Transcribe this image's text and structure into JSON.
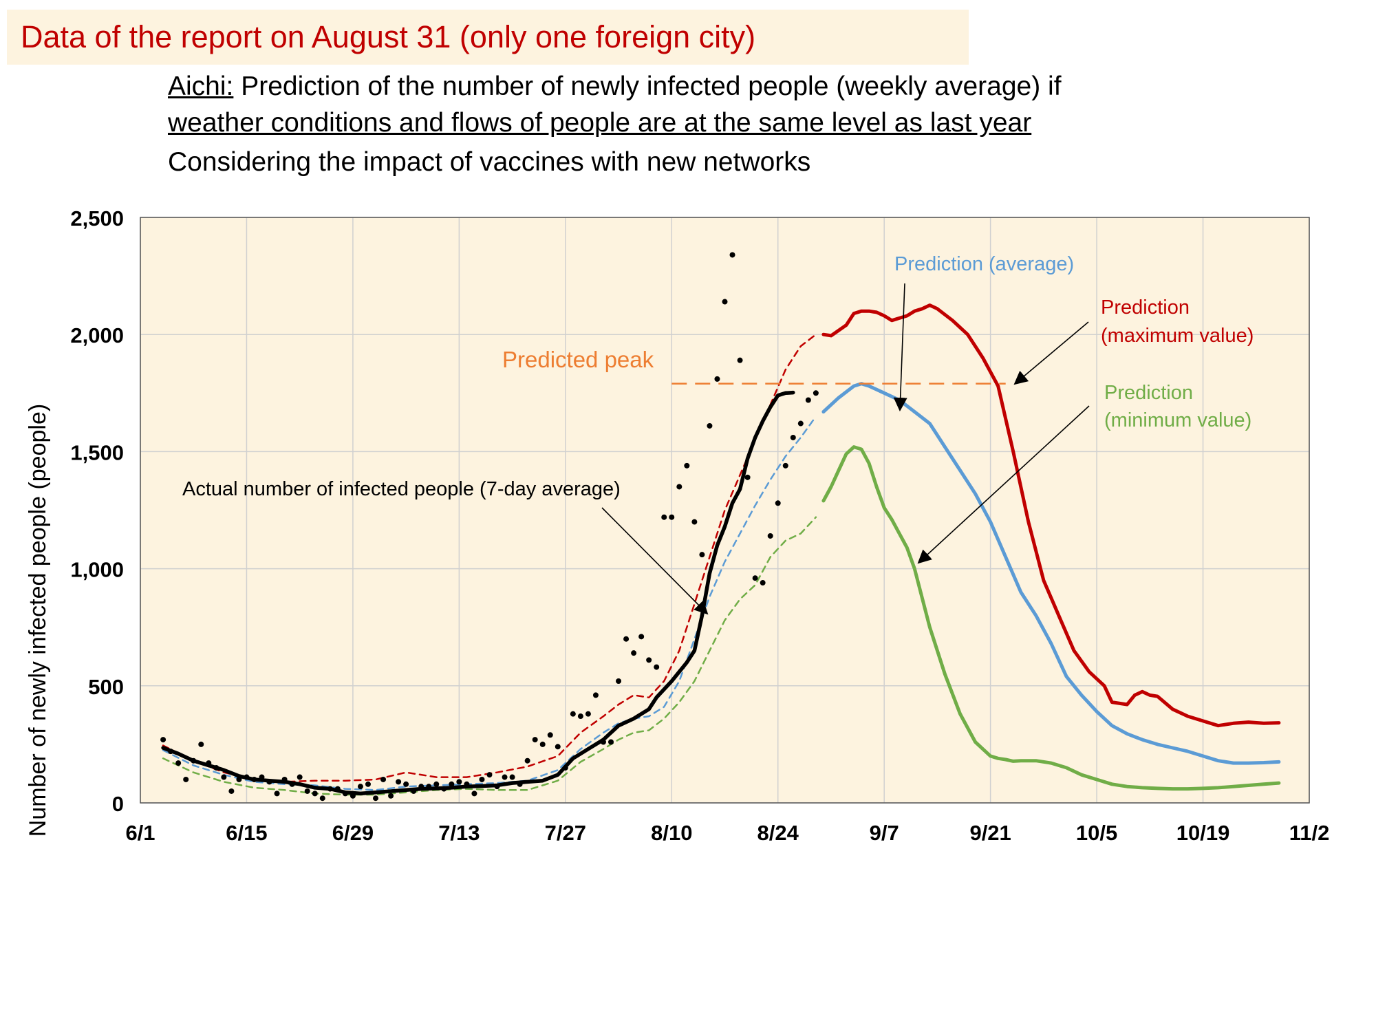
{
  "header": {
    "report_title": "Data of the report on August 31 (only one foreign city)",
    "subtitle_line1_prefix": "Aichi:",
    "subtitle_line1_rest": " Prediction of the number of newly infected people (weekly average) if",
    "subtitle_line2": "weather conditions and flows of people are at the same level as last year",
    "subtitle_line3": "Considering the impact of vaccines with new networks"
  },
  "colors": {
    "plot_background": "#fdf3df",
    "title_red": "#c00000",
    "actual": "#000000",
    "max": "#c00000",
    "avg": "#5b9bd5",
    "min": "#70ad47",
    "peak": "#ed7d31"
  },
  "chart_data": {
    "type": "line",
    "ylabel": "Number of newly infected people (people)",
    "xlabel": "",
    "ylim": [
      0,
      2500
    ],
    "yticks": [
      0,
      500,
      1000,
      1500,
      2000,
      2500
    ],
    "ytick_labels": [
      "0",
      "500",
      "1,000",
      "1,500",
      "2,000",
      "2,500"
    ],
    "xticks": [
      0,
      14,
      28,
      42,
      56,
      70,
      84,
      98,
      112,
      126,
      140,
      154
    ],
    "xtick_labels": [
      "6/1",
      "6/15",
      "6/29",
      "7/13",
      "7/27",
      "8/10",
      "8/24",
      "9/7",
      "9/21",
      "10/5",
      "10/19",
      "11/2"
    ],
    "x_unit": "days since 6/1",
    "grid": true,
    "predicted_peak": {
      "label": "Predicted peak",
      "value": 1790,
      "x_start": 70,
      "x_end": 114
    },
    "annotations": {
      "actual": "Actual number of infected people (7-day average)",
      "avg": "Prediction (average)",
      "max_line1": "Prediction",
      "max_line2": "(maximum value)",
      "min_line1": "Prediction",
      "min_line2": "(minimum value)"
    },
    "series": [
      {
        "name": "Actual number of infected people (7-day average)",
        "style": "solid-thick",
        "x": [
          3,
          5,
          7,
          9,
          11,
          13,
          15,
          17,
          19,
          21,
          23,
          25,
          27,
          29,
          31,
          33,
          35,
          37,
          39,
          41,
          43,
          45,
          47,
          49,
          51,
          53,
          55,
          57,
          59,
          61,
          63,
          65,
          67,
          68,
          70,
          72,
          73,
          74,
          75,
          76,
          77,
          78,
          79,
          80,
          81,
          82,
          83,
          84,
          85,
          86
        ],
        "values": [
          235,
          210,
          180,
          160,
          140,
          115,
          100,
          95,
          90,
          80,
          65,
          60,
          45,
          40,
          45,
          50,
          55,
          60,
          62,
          65,
          70,
          72,
          75,
          85,
          90,
          95,
          120,
          190,
          230,
          270,
          330,
          360,
          400,
          450,
          520,
          600,
          650,
          800,
          980,
          1100,
          1180,
          1280,
          1340,
          1470,
          1560,
          1630,
          1690,
          1740,
          1750,
          1752
        ]
      },
      {
        "name": "Past prediction (maximum value)",
        "style": "dashed",
        "x": [
          3,
          7,
          11,
          15,
          19,
          23,
          27,
          31,
          35,
          39,
          43,
          47,
          51,
          55,
          58,
          61,
          63,
          65,
          67,
          69,
          71,
          73,
          75,
          77,
          79,
          81,
          83,
          85,
          87,
          89
        ],
        "values": [
          245,
          180,
          130,
          100,
          90,
          95,
          95,
          100,
          130,
          110,
          110,
          130,
          155,
          200,
          300,
          370,
          420,
          460,
          450,
          520,
          650,
          850,
          1050,
          1250,
          1400,
          1550,
          1700,
          1850,
          1950,
          2000
        ]
      },
      {
        "name": "Past prediction (average)",
        "style": "dashed",
        "x": [
          3,
          7,
          11,
          15,
          19,
          23,
          27,
          31,
          35,
          39,
          43,
          47,
          51,
          55,
          58,
          61,
          63,
          65,
          67,
          69,
          71,
          73,
          75,
          77,
          79,
          81,
          83,
          85,
          87,
          89
        ],
        "values": [
          225,
          160,
          120,
          90,
          80,
          75,
          60,
          55,
          70,
          75,
          80,
          85,
          95,
          140,
          230,
          300,
          340,
          360,
          370,
          410,
          520,
          700,
          880,
          1030,
          1150,
          1270,
          1380,
          1480,
          1560,
          1650
        ]
      },
      {
        "name": "Past prediction (minimum value)",
        "style": "dashed",
        "x": [
          3,
          7,
          11,
          15,
          19,
          23,
          27,
          31,
          35,
          39,
          43,
          47,
          51,
          55,
          58,
          61,
          63,
          65,
          67,
          69,
          71,
          73,
          75,
          77,
          79,
          81,
          83,
          85,
          87,
          89
        ],
        "values": [
          190,
          130,
          90,
          65,
          55,
          40,
          35,
          35,
          45,
          55,
          60,
          55,
          55,
          95,
          175,
          230,
          270,
          300,
          310,
          360,
          430,
          520,
          650,
          780,
          870,
          930,
          1050,
          1120,
          1150,
          1220
        ]
      },
      {
        "name": "Prediction (maximum value)",
        "style": "solid",
        "x": [
          90,
          91,
          93,
          94,
          95,
          96,
          97,
          98,
          99,
          100,
          101,
          102,
          103,
          104,
          105,
          107,
          109,
          111,
          113,
          115,
          117,
          119,
          121,
          123,
          125,
          127,
          128,
          130,
          131,
          132,
          133,
          134,
          136,
          138,
          140,
          142,
          144,
          146,
          148,
          150
        ],
        "values": [
          2000,
          1995,
          2040,
          2090,
          2100,
          2100,
          2095,
          2080,
          2060,
          2070,
          2080,
          2100,
          2110,
          2125,
          2110,
          2060,
          2000,
          1900,
          1780,
          1500,
          1200,
          950,
          800,
          650,
          560,
          500,
          430,
          420,
          460,
          475,
          460,
          455,
          400,
          370,
          350,
          330,
          340,
          345,
          340,
          342
        ]
      },
      {
        "name": "Prediction (average)",
        "style": "solid",
        "x": [
          90,
          92,
          94,
          95,
          96,
          98,
          100,
          102,
          104,
          106,
          108,
          110,
          112,
          114,
          116,
          118,
          120,
          122,
          124,
          126,
          128,
          130,
          132,
          134,
          136,
          138,
          140,
          142,
          144,
          146,
          148,
          150
        ],
        "values": [
          1670,
          1730,
          1780,
          1790,
          1780,
          1750,
          1720,
          1670,
          1620,
          1520,
          1420,
          1320,
          1200,
          1050,
          900,
          800,
          680,
          540,
          460,
          390,
          330,
          295,
          270,
          250,
          235,
          220,
          200,
          180,
          170,
          170,
          172,
          175
        ]
      },
      {
        "name": "Prediction (minimum value)",
        "style": "solid",
        "x": [
          90,
          91,
          92,
          93,
          94,
          95,
          96,
          97,
          98,
          99,
          100,
          101,
          102,
          104,
          106,
          108,
          110,
          112,
          113,
          114,
          115,
          116,
          118,
          120,
          122,
          124,
          126,
          128,
          130,
          132,
          134,
          136,
          138,
          140,
          142,
          144,
          146,
          148,
          150
        ],
        "values": [
          1290,
          1350,
          1420,
          1490,
          1520,
          1510,
          1450,
          1350,
          1260,
          1210,
          1150,
          1090,
          1000,
          750,
          550,
          380,
          260,
          200,
          190,
          185,
          178,
          180,
          180,
          170,
          150,
          120,
          100,
          80,
          70,
          65,
          62,
          60,
          60,
          62,
          65,
          70,
          75,
          80,
          85
        ]
      },
      {
        "name": "Daily reported cases",
        "style": "points",
        "x": [
          3,
          4,
          5,
          6,
          7,
          8,
          9,
          10,
          11,
          12,
          13,
          14,
          15,
          16,
          17,
          18,
          19,
          20,
          21,
          22,
          23,
          24,
          25,
          26,
          27,
          28,
          29,
          30,
          31,
          32,
          33,
          34,
          35,
          36,
          37,
          38,
          39,
          40,
          41,
          42,
          43,
          44,
          45,
          46,
          47,
          48,
          49,
          50,
          51,
          52,
          53,
          54,
          55,
          56,
          57,
          58,
          59,
          60,
          61,
          62,
          63,
          64,
          65,
          66,
          67,
          68,
          69,
          70,
          71,
          72,
          73,
          74,
          75,
          76,
          77,
          78,
          79,
          80,
          81,
          82,
          83,
          84,
          85,
          86,
          87,
          88,
          89
        ],
        "values": [
          270,
          220,
          170,
          100,
          180,
          250,
          170,
          150,
          110,
          50,
          100,
          110,
          100,
          110,
          90,
          40,
          100,
          80,
          110,
          50,
          40,
          20,
          60,
          60,
          40,
          30,
          70,
          80,
          20,
          100,
          30,
          90,
          80,
          50,
          70,
          70,
          80,
          60,
          80,
          90,
          80,
          40,
          100,
          120,
          70,
          110,
          110,
          80,
          180,
          270,
          250,
          290,
          240,
          150,
          380,
          370,
          380,
          460,
          260,
          260,
          520,
          700,
          640,
          710,
          610,
          580,
          1220,
          1220,
          1350,
          1440,
          1200,
          1060,
          1610,
          1810,
          2140,
          2340,
          1890,
          1390,
          960,
          940,
          1140,
          1280,
          1440,
          1560,
          1620,
          1720,
          1750
        ]
      }
    ]
  }
}
